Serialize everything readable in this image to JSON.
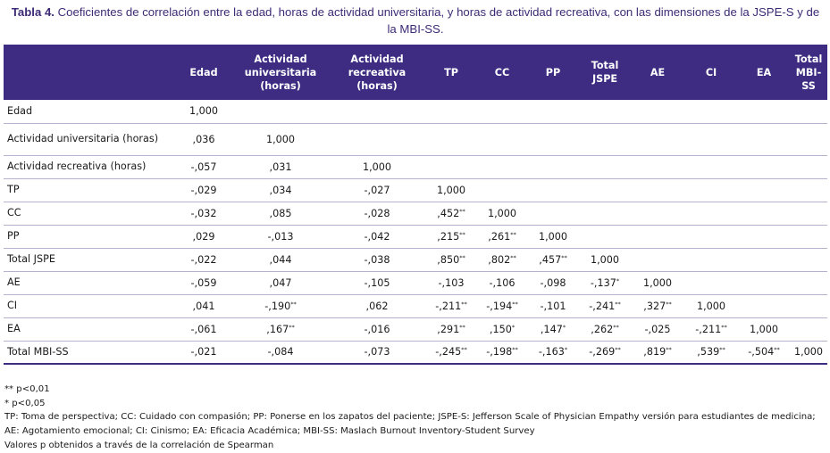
{
  "caption": {
    "label": "Tabla 4.",
    "text": "Coeficientes de correlación entre la edad, horas de actividad universitaria, y horas de actividad recreativa, con las dimensiones de la JSPE-S y de la MBI-SS."
  },
  "table": {
    "headers": [
      "",
      "Edad",
      "Actividad universitaria (horas)",
      "Actividad recreativa (horas)",
      "TP",
      "CC",
      "PP",
      "Total JSPE",
      "AE",
      "CI",
      "EA",
      "Total MBI-SS"
    ],
    "rows": [
      {
        "label": "Edad",
        "cells": [
          {
            "v": "1,000",
            "s": ""
          }
        ]
      },
      {
        "label": "Actividad universitaria (horas)",
        "cells": [
          {
            "v": ",036",
            "s": ""
          },
          {
            "v": "1,000",
            "s": ""
          }
        ]
      },
      {
        "label": "Actividad recreativa (horas)",
        "cells": [
          {
            "v": "-,057",
            "s": ""
          },
          {
            "v": ",031",
            "s": ""
          },
          {
            "v": "1,000",
            "s": ""
          }
        ]
      },
      {
        "label": "TP",
        "cells": [
          {
            "v": "-,029",
            "s": ""
          },
          {
            "v": ",034",
            "s": ""
          },
          {
            "v": "-,027",
            "s": ""
          },
          {
            "v": "1,000",
            "s": ""
          }
        ]
      },
      {
        "label": "CC",
        "cells": [
          {
            "v": "-,032",
            "s": ""
          },
          {
            "v": ",085",
            "s": ""
          },
          {
            "v": "-,028",
            "s": ""
          },
          {
            "v": ",452",
            "s": "**"
          },
          {
            "v": "1,000",
            "s": ""
          }
        ]
      },
      {
        "label": "PP",
        "cells": [
          {
            "v": ",029",
            "s": ""
          },
          {
            "v": "-,013",
            "s": ""
          },
          {
            "v": "-,042",
            "s": ""
          },
          {
            "v": ",215",
            "s": "**"
          },
          {
            "v": ",261",
            "s": "**"
          },
          {
            "v": "1,000",
            "s": ""
          }
        ]
      },
      {
        "label": "Total JSPE",
        "cells": [
          {
            "v": "-,022",
            "s": ""
          },
          {
            "v": ",044",
            "s": ""
          },
          {
            "v": "-,038",
            "s": ""
          },
          {
            "v": ",850",
            "s": "**"
          },
          {
            "v": ",802",
            "s": "**"
          },
          {
            "v": ",457",
            "s": "**"
          },
          {
            "v": "1,000",
            "s": ""
          }
        ]
      },
      {
        "label": "AE",
        "cells": [
          {
            "v": "-,059",
            "s": ""
          },
          {
            "v": ",047",
            "s": ""
          },
          {
            "v": "-,105",
            "s": ""
          },
          {
            "v": "-,103",
            "s": ""
          },
          {
            "v": "-,106",
            "s": ""
          },
          {
            "v": "-,098",
            "s": ""
          },
          {
            "v": "-,137",
            "s": "*"
          },
          {
            "v": "1,000",
            "s": ""
          }
        ]
      },
      {
        "label": "CI",
        "cells": [
          {
            "v": ",041",
            "s": ""
          },
          {
            "v": "-,190",
            "s": "**"
          },
          {
            "v": ",062",
            "s": ""
          },
          {
            "v": "-,211",
            "s": "**"
          },
          {
            "v": "-,194",
            "s": "**"
          },
          {
            "v": "-,101",
            "s": ""
          },
          {
            "v": "-,241",
            "s": "**"
          },
          {
            "v": ",327",
            "s": "**"
          },
          {
            "v": "1,000",
            "s": ""
          }
        ]
      },
      {
        "label": "EA",
        "cells": [
          {
            "v": "-,061",
            "s": ""
          },
          {
            "v": ",167",
            "s": "**"
          },
          {
            "v": "-,016",
            "s": ""
          },
          {
            "v": ",291",
            "s": "**"
          },
          {
            "v": ",150",
            "s": "*"
          },
          {
            "v": ",147",
            "s": "*"
          },
          {
            "v": ",262",
            "s": "**"
          },
          {
            "v": "-,025",
            "s": ""
          },
          {
            "v": "-,211",
            "s": "**"
          },
          {
            "v": "1,000",
            "s": ""
          }
        ]
      },
      {
        "label": "Total MBI-SS",
        "cells": [
          {
            "v": "-,021",
            "s": ""
          },
          {
            "v": "-,084",
            "s": ""
          },
          {
            "v": "-,073",
            "s": ""
          },
          {
            "v": "-,245",
            "s": "**"
          },
          {
            "v": "-,198",
            "s": "**"
          },
          {
            "v": "-,163",
            "s": "*"
          },
          {
            "v": "-,269",
            "s": "**"
          },
          {
            "v": ",819",
            "s": "**"
          },
          {
            "v": ",539",
            "s": "**"
          },
          {
            "v": "-,504",
            "s": "**"
          },
          {
            "v": "1,000",
            "s": ""
          }
        ]
      }
    ]
  },
  "notes": {
    "sig_001": "** p<0,01",
    "sig_005": "* p<0,05",
    "abbreviations_1": "TP: Toma de perspectiva; CC: Cuidado con compasión; PP: Ponerse en los zapatos del paciente; JSPE-S: Jefferson Scale of Physician Empathy versión para estudiantes de medicina;",
    "abbreviations_2": "AE: Agotamiento emocional; CI: Cinismo; EA: Eficacia Académica; MBI-SS: Maslach Burnout Inventory-Student Survey",
    "method": "Valores p obtenidos a través de la correlación de Spearman"
  }
}
